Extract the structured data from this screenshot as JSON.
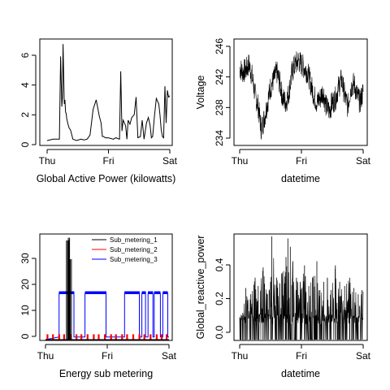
{
  "chart_data": [
    {
      "type": "line",
      "title": "",
      "xlabel": "Global Active Power (kilowatts)",
      "ylabel": "",
      "x_ticks": [
        "Thu",
        "Fri",
        "Sat"
      ],
      "x_range": [
        "Thu 00:00",
        "Sat 00:00"
      ],
      "y_ticks": [
        "0",
        "2",
        "4",
        "6"
      ],
      "ylim": [
        0,
        7.6
      ],
      "series": [
        {
          "color": "#000000",
          "x_days": [
            0.0,
            0.1,
            0.2,
            0.22,
            0.24,
            0.25,
            0.26,
            0.28,
            0.29,
            0.3,
            0.31,
            0.32,
            0.34,
            0.36,
            0.38,
            0.42,
            0.48,
            0.55,
            0.6,
            0.65,
            0.7,
            0.75,
            0.8,
            0.85,
            0.88,
            0.9,
            0.92,
            0.95,
            1.0,
            1.08,
            1.12,
            1.18,
            1.2,
            1.22,
            1.24,
            1.28,
            1.3,
            1.32,
            1.35,
            1.38,
            1.42,
            1.45,
            1.48,
            1.52,
            1.55,
            1.58,
            1.62,
            1.65,
            1.68,
            1.7,
            1.72,
            1.75,
            1.78,
            1.82,
            1.84,
            1.86,
            1.88,
            1.9,
            1.92,
            1.94,
            1.96,
            1.98,
            2.0
          ],
          "y": [
            0.3,
            0.4,
            0.4,
            6.5,
            2.8,
            3.5,
            7.4,
            3.0,
            3.3,
            2.4,
            2.3,
            1.9,
            1.5,
            1.2,
            1.1,
            0.4,
            0.3,
            0.4,
            0.35,
            0.4,
            0.7,
            2.6,
            3.3,
            2.1,
            1.6,
            0.6,
            0.6,
            0.5,
            0.5,
            0.4,
            0.5,
            0.4,
            5.4,
            1.0,
            1.8,
            1.4,
            0.4,
            1.8,
            1.5,
            2.0,
            2.2,
            3.5,
            0.5,
            0.6,
            1.8,
            0.4,
            1.6,
            2.0,
            1.4,
            0.5,
            0.6,
            2.1,
            3.4,
            3.0,
            2.2,
            1.1,
            0.6,
            0.5,
            4.3,
            1.6,
            4.0,
            3.5,
            3.6
          ]
        }
      ]
    },
    {
      "type": "line",
      "title": "",
      "xlabel": "datetime",
      "ylabel": "Voltage",
      "x_ticks": [
        "Thu",
        "Fri",
        "Sat"
      ],
      "y_ticks": [
        "234",
        "238",
        "242",
        "246"
      ],
      "ylim": [
        233,
        246.5
      ],
      "series": [
        {
          "color": "#000000",
          "x_days": [
            0.0,
            0.05,
            0.1,
            0.15,
            0.2,
            0.25,
            0.3,
            0.35,
            0.4,
            0.45,
            0.5,
            0.55,
            0.6,
            0.65,
            0.7,
            0.75,
            0.8,
            0.85,
            0.9,
            0.95,
            1.0,
            1.05,
            1.1,
            1.15,
            1.2,
            1.25,
            1.3,
            1.35,
            1.4,
            1.45,
            1.5,
            1.55,
            1.6,
            1.65,
            1.7,
            1.75,
            1.8,
            1.85,
            1.9,
            1.95,
            2.0
          ],
          "y": [
            243.0,
            242.5,
            242.8,
            243.5,
            242.0,
            239.5,
            238.0,
            235.0,
            236.5,
            238.5,
            240.5,
            241.5,
            242.5,
            241.0,
            239.0,
            238.5,
            240.0,
            242.5,
            243.5,
            244.0,
            243.5,
            243.0,
            242.5,
            241.0,
            239.5,
            238.5,
            239.0,
            240.0,
            238.0,
            237.5,
            238.5,
            239.0,
            240.5,
            241.5,
            239.5,
            238.0,
            240.5,
            241.0,
            239.5,
            238.5,
            240.0
          ]
        }
      ]
    },
    {
      "type": "line",
      "title": "",
      "xlabel": "Energy sub metering",
      "ylabel": "",
      "x_ticks": [
        "Thu",
        "Fri",
        "Sat"
      ],
      "y_ticks": [
        "0",
        "10",
        "20",
        "30"
      ],
      "ylim": [
        0,
        38.5
      ],
      "legend": {
        "position": "top-right"
      },
      "series": [
        {
          "name": "Sub_metering_1",
          "color": "#000000",
          "spikes": [
            [
              0.34,
              37
            ],
            [
              0.36,
              37
            ],
            [
              0.37,
              38
            ],
            [
              0.4,
              30
            ]
          ]
        },
        {
          "name": "Sub_metering_2",
          "color": "#ff0000",
          "pulse_level": 2,
          "pulse_x_days": [
            0.03,
            0.12,
            0.22,
            0.3,
            0.4,
            0.5,
            0.58,
            0.68,
            0.78,
            0.86,
            0.96,
            1.06,
            1.14,
            1.24,
            1.32,
            1.42,
            1.52,
            1.6,
            1.7,
            1.8,
            1.88,
            1.96
          ]
        },
        {
          "name": "Sub_metering_3",
          "color": "#0000ff",
          "on_level": 17,
          "high_level": 18,
          "on_intervals": [
            [
              0.22,
              0.46
            ],
            [
              0.64,
              0.98
            ],
            [
              1.28,
              1.52
            ],
            [
              1.56,
              1.62
            ],
            [
              1.66,
              1.74
            ],
            [
              1.76,
              1.86
            ],
            [
              1.9,
              1.98
            ]
          ],
          "base_level": 1
        }
      ]
    },
    {
      "type": "line",
      "title": "",
      "xlabel": "datetime",
      "ylabel": "Global_reactive_power",
      "x_ticks": [
        "Thu",
        "Fri",
        "Sat"
      ],
      "y_ticks": [
        "0.0",
        "0.2",
        "0.4"
      ],
      "ylim": [
        0,
        0.5
      ],
      "series": [
        {
          "color": "#000000",
          "baseline_level": 0.1,
          "peaks": [
            [
              0.05,
              0.13
            ],
            [
              0.1,
              0.25
            ],
            [
              0.18,
              0.22
            ],
            [
              0.25,
              0.3
            ],
            [
              0.3,
              0.26
            ],
            [
              0.38,
              0.35
            ],
            [
              0.45,
              0.22
            ],
            [
              0.5,
              0.28
            ],
            [
              0.52,
              0.5
            ],
            [
              0.6,
              0.3
            ],
            [
              0.68,
              0.32
            ],
            [
              0.75,
              0.4
            ],
            [
              0.78,
              0.49
            ],
            [
              0.82,
              0.45
            ],
            [
              0.86,
              0.38
            ],
            [
              0.92,
              0.3
            ],
            [
              0.98,
              0.28
            ],
            [
              1.05,
              0.36
            ],
            [
              1.12,
              0.26
            ],
            [
              1.18,
              0.3
            ],
            [
              1.25,
              0.38
            ],
            [
              1.3,
              0.24
            ],
            [
              1.36,
              0.28
            ],
            [
              1.42,
              0.3
            ],
            [
              1.48,
              0.24
            ],
            [
              1.55,
              0.36
            ],
            [
              1.62,
              0.28
            ],
            [
              1.7,
              0.26
            ],
            [
              1.78,
              0.3
            ],
            [
              1.85,
              0.25
            ],
            [
              1.92,
              0.22
            ],
            [
              1.98,
              0.24
            ]
          ]
        }
      ]
    }
  ]
}
